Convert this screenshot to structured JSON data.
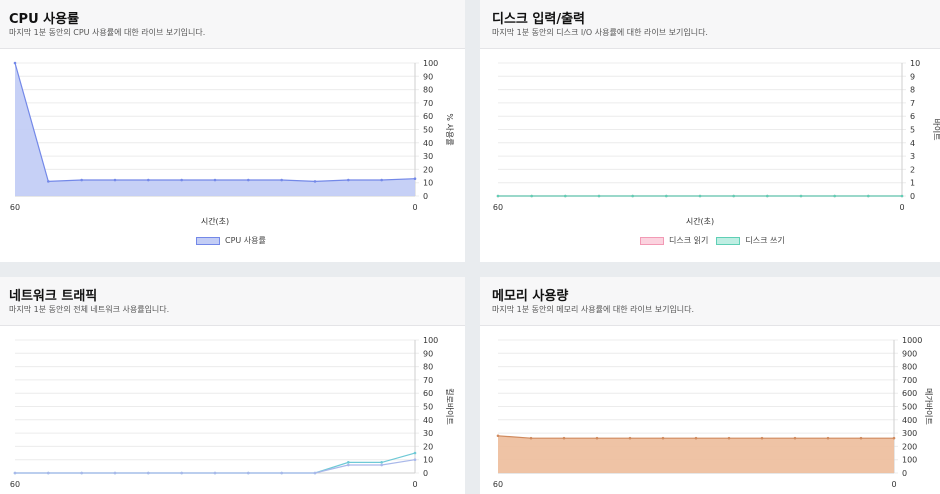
{
  "cards": {
    "cpu": {
      "title": "CPU 사용률",
      "subtitle": "마지막 1분 동안의 CPU 사용률에 대한 라이브 보기입니다."
    },
    "disk": {
      "title": "디스크 입력/출력",
      "subtitle": "마지막 1분 동안의 디스크 I/O 사용률에 대한 라이브 보기입니다."
    },
    "network": {
      "title": "네트워크 트래픽",
      "subtitle": "마지막 1분 동안의 전체 네트워크 사용률입니다."
    },
    "memory": {
      "title": "메모리 사용량",
      "subtitle": "마지막 1분 동안의 메모리 사용률에 대한 라이브 보기입니다."
    }
  },
  "colors": {
    "cpu_fill": "#c3cdf5",
    "cpu_line": "#7388e8",
    "disk_read_fill": "#fbd3df",
    "disk_read_line": "#f29ab5",
    "disk_write_fill": "#bfeee3",
    "disk_write_line": "#5fcfb5",
    "net_line1": "#6ec9d6",
    "net_line2": "#a9b8ea",
    "mem_fill": "#eec0a0",
    "mem_line": "#d08a5e",
    "grid": "#ececec"
  },
  "chart_data": [
    {
      "id": "cpu",
      "type": "area",
      "x": [
        60,
        55,
        50,
        45,
        40,
        35,
        30,
        25,
        20,
        15,
        10,
        5,
        0
      ],
      "xticks": [
        "60",
        "0"
      ],
      "xlabel": "시간(초)",
      "ylabel": "% 사용률",
      "ylim": [
        0,
        100
      ],
      "yticks": [
        0,
        10,
        20,
        30,
        40,
        50,
        60,
        70,
        80,
        90,
        100
      ],
      "legend_position": "bottom",
      "series": [
        {
          "name": "CPU 사용률",
          "values": [
            100,
            11,
            12,
            12,
            12,
            12,
            12,
            12,
            12,
            11,
            12,
            12,
            13
          ]
        }
      ]
    },
    {
      "id": "disk",
      "type": "area",
      "x": [
        60,
        55,
        50,
        45,
        40,
        35,
        30,
        25,
        20,
        15,
        10,
        5,
        0
      ],
      "xticks": [
        "60",
        "0"
      ],
      "xlabel": "시간(초)",
      "ylabel": "바이트",
      "ylim": [
        0,
        10
      ],
      "yticks": [
        0,
        1,
        2,
        3,
        4,
        5,
        6,
        7,
        8,
        9,
        10
      ],
      "legend_position": "bottom",
      "series": [
        {
          "name": "디스크 읽기",
          "values": [
            0,
            0,
            0,
            0,
            0,
            0,
            0,
            0,
            0,
            0,
            0,
            0,
            0
          ]
        },
        {
          "name": "디스크 쓰기",
          "values": [
            0,
            0,
            0,
            0,
            0,
            0,
            0,
            0,
            0,
            0,
            0,
            0,
            0
          ]
        }
      ]
    },
    {
      "id": "network",
      "type": "line",
      "x": [
        60,
        55,
        50,
        45,
        40,
        35,
        30,
        25,
        20,
        15,
        10,
        5,
        0
      ],
      "xticks": [
        "60",
        "0"
      ],
      "xlabel": "",
      "ylabel": "킬로바이트",
      "ylim": [
        0,
        100
      ],
      "yticks": [
        0,
        10,
        20,
        30,
        40,
        50,
        60,
        70,
        80,
        90,
        100
      ],
      "series": [
        {
          "values": [
            0,
            0,
            0,
            0,
            0,
            0,
            0,
            0,
            0,
            0,
            8,
            8,
            15
          ]
        },
        {
          "values": [
            0,
            0,
            0,
            0,
            0,
            0,
            0,
            0,
            0,
            0,
            6,
            6,
            10
          ]
        }
      ]
    },
    {
      "id": "memory",
      "type": "area",
      "x": [
        60,
        55,
        50,
        45,
        40,
        35,
        30,
        25,
        20,
        15,
        10,
        5,
        0
      ],
      "xticks": [
        "60",
        "0"
      ],
      "xlabel": "",
      "ylabel": "메가바이트",
      "ylim": [
        0,
        1000
      ],
      "yticks": [
        0,
        100,
        200,
        300,
        400,
        500,
        600,
        700,
        800,
        900,
        1000
      ],
      "series": [
        {
          "values": [
            280,
            262,
            262,
            262,
            262,
            262,
            262,
            262,
            262,
            262,
            262,
            262,
            262
          ]
        }
      ]
    }
  ]
}
